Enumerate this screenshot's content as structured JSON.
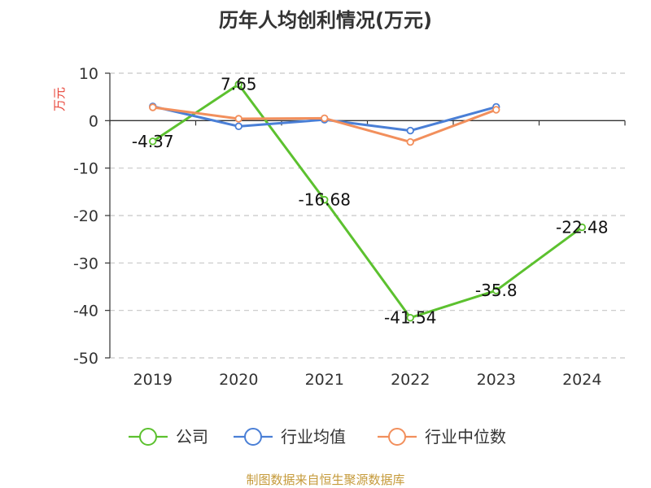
{
  "chart_data": {
    "type": "line",
    "title": "历年人均创利情况(万元)",
    "ylabel": "万元",
    "categories": [
      "2019",
      "2020",
      "2021",
      "2022",
      "2023",
      "2024"
    ],
    "ylim": [
      -50,
      10
    ],
    "yticks": [
      10,
      0,
      -10,
      -20,
      -30,
      -40,
      -50
    ],
    "grid": true,
    "legend_position": "bottom",
    "series": [
      {
        "name": "公司",
        "color": "#5cc12f",
        "values": [
          -4.37,
          7.65,
          -16.68,
          -41.54,
          -35.8,
          -22.48
        ],
        "labels": [
          "-4.37",
          "7.65",
          "-16.68",
          "-41.54",
          "-35.8",
          "-22.48"
        ]
      },
      {
        "name": "行业均值",
        "color": "#4a7fd6",
        "values": [
          3.0,
          -1.2,
          0.2,
          -2.1,
          2.9,
          null
        ]
      },
      {
        "name": "行业中位数",
        "color": "#f28f5c",
        "values": [
          2.8,
          0.4,
          0.5,
          -4.5,
          2.3,
          null
        ]
      }
    ]
  },
  "source_text": "制图数据来自恒生聚源数据库"
}
